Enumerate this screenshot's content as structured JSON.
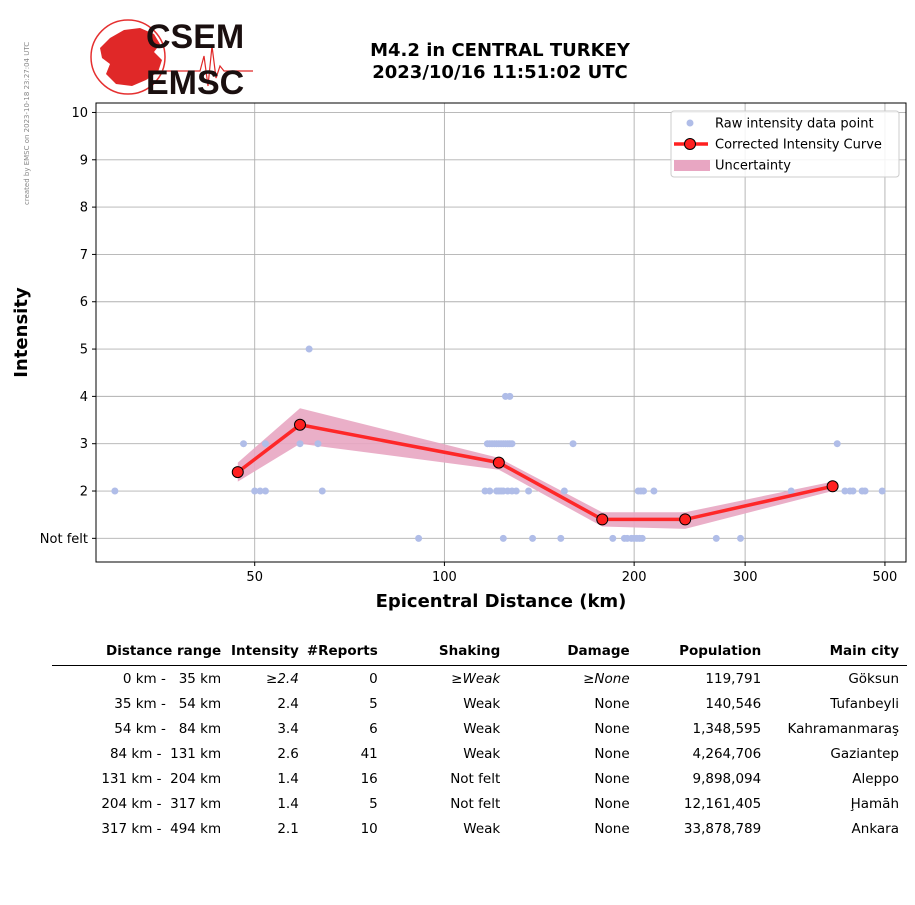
{
  "credit": "created by EMSC on 2023-10-18 23:27:04 UTC",
  "logo": {
    "line1": "CSEM",
    "line2": "EMSC"
  },
  "title": {
    "line1": "M4.2 in CENTRAL TURKEY",
    "line2": "2023/10/16 11:51:02 UTC"
  },
  "chart_data": {
    "type": "scatter",
    "xlabel": "Epicentral Distance (km)",
    "ylabel": "Intensity",
    "x_scale": "log",
    "xlim": [
      28,
      540
    ],
    "ylim": [
      0.5,
      10.2
    ],
    "x_ticks": [
      50,
      100,
      200,
      300,
      500
    ],
    "y_ticks": [
      {
        "value": 1,
        "label": "Not felt"
      },
      {
        "value": 2,
        "label": "2"
      },
      {
        "value": 3,
        "label": "3"
      },
      {
        "value": 4,
        "label": "4"
      },
      {
        "value": 5,
        "label": "5"
      },
      {
        "value": 6,
        "label": "6"
      },
      {
        "value": 7,
        "label": "7"
      },
      {
        "value": 8,
        "label": "8"
      },
      {
        "value": 9,
        "label": "9"
      },
      {
        "value": 10,
        "label": "10"
      }
    ],
    "grid": true,
    "legend_position": "top-right",
    "legend": [
      {
        "label": "Raw intensity data point",
        "kind": "marker",
        "color": "#b0bde8"
      },
      {
        "label": "Corrected Intensity Curve",
        "kind": "line",
        "color": "#ff2020"
      },
      {
        "label": "Uncertainty",
        "kind": "band",
        "color": "#e8a6c2"
      }
    ],
    "raw_points": [
      [
        30,
        2
      ],
      [
        48,
        3
      ],
      [
        50,
        2
      ],
      [
        51,
        2
      ],
      [
        52,
        2
      ],
      [
        52,
        3
      ],
      [
        59,
        3
      ],
      [
        61,
        5
      ],
      [
        63,
        3
      ],
      [
        64,
        2
      ],
      [
        91,
        1
      ],
      [
        116,
        2
      ],
      [
        117,
        3
      ],
      [
        118,
        2
      ],
      [
        118,
        3
      ],
      [
        119,
        3
      ],
      [
        120,
        3
      ],
      [
        121,
        2
      ],
      [
        121,
        3
      ],
      [
        122,
        2
      ],
      [
        122,
        3
      ],
      [
        123,
        2
      ],
      [
        123,
        3
      ],
      [
        124,
        2
      ],
      [
        124,
        1
      ],
      [
        124,
        3
      ],
      [
        125,
        3
      ],
      [
        125,
        4
      ],
      [
        126,
        2
      ],
      [
        126,
        3
      ],
      [
        127,
        4
      ],
      [
        127,
        3
      ],
      [
        128,
        3
      ],
      [
        128,
        2
      ],
      [
        130,
        2
      ],
      [
        136,
        2
      ],
      [
        138,
        1
      ],
      [
        153,
        1
      ],
      [
        155,
        2
      ],
      [
        160,
        3
      ],
      [
        185,
        1
      ],
      [
        193,
        1
      ],
      [
        195,
        1
      ],
      [
        198,
        1
      ],
      [
        200,
        1
      ],
      [
        202,
        1
      ],
      [
        203,
        2
      ],
      [
        204,
        1
      ],
      [
        205,
        2
      ],
      [
        206,
        1
      ],
      [
        207,
        2
      ],
      [
        215,
        2
      ],
      [
        270,
        1
      ],
      [
        295,
        1
      ],
      [
        355,
        2
      ],
      [
        420,
        3
      ],
      [
        432,
        2
      ],
      [
        440,
        2
      ],
      [
        445,
        2
      ],
      [
        460,
        2
      ],
      [
        465,
        2
      ],
      [
        495,
        2
      ]
    ],
    "series": [
      {
        "name": "Corrected Intensity Curve",
        "x": [
          47,
          59,
          122,
          178,
          241,
          413
        ],
        "y": [
          2.4,
          3.4,
          2.6,
          1.4,
          1.4,
          2.1
        ],
        "upper": [
          2.6,
          3.75,
          2.7,
          1.55,
          1.55,
          2.2
        ],
        "lower": [
          2.2,
          3.0,
          2.45,
          1.25,
          1.2,
          2.0
        ]
      }
    ]
  },
  "table": {
    "headers": [
      "Distance range",
      "Intensity",
      "#Reports",
      "Shaking",
      "Damage",
      "Population",
      "Main city"
    ],
    "rows": [
      {
        "range": "0 km -   35 km",
        "intensity": "≥2.4",
        "reports": "0",
        "shaking": "≥Weak",
        "damage": "≥None",
        "population": "119,791",
        "city": "Göksun"
      },
      {
        "range": "35 km -   54 km",
        "intensity": "2.4",
        "reports": "5",
        "shaking": "Weak",
        "damage": "None",
        "population": "140,546",
        "city": "Tufanbeyli"
      },
      {
        "range": "54 km -   84 km",
        "intensity": "3.4",
        "reports": "6",
        "shaking": "Weak",
        "damage": "None",
        "population": "1,348,595",
        "city": "Kahramanmaraş"
      },
      {
        "range": "84 km -  131 km",
        "intensity": "2.6",
        "reports": "41",
        "shaking": "Weak",
        "damage": "None",
        "population": "4,264,706",
        "city": "Gaziantep"
      },
      {
        "range": "131 km -  204 km",
        "intensity": "1.4",
        "reports": "16",
        "shaking": "Not felt",
        "damage": "None",
        "population": "9,898,094",
        "city": "Aleppo"
      },
      {
        "range": "204 km -  317 km",
        "intensity": "1.4",
        "reports": "5",
        "shaking": "Not felt",
        "damage": "None",
        "population": "12,161,405",
        "city": "Ḩamāh"
      },
      {
        "range": "317 km -  494 km",
        "intensity": "2.1",
        "reports": "10",
        "shaking": "Weak",
        "damage": "None",
        "population": "33,878,789",
        "city": "Ankara"
      }
    ]
  }
}
